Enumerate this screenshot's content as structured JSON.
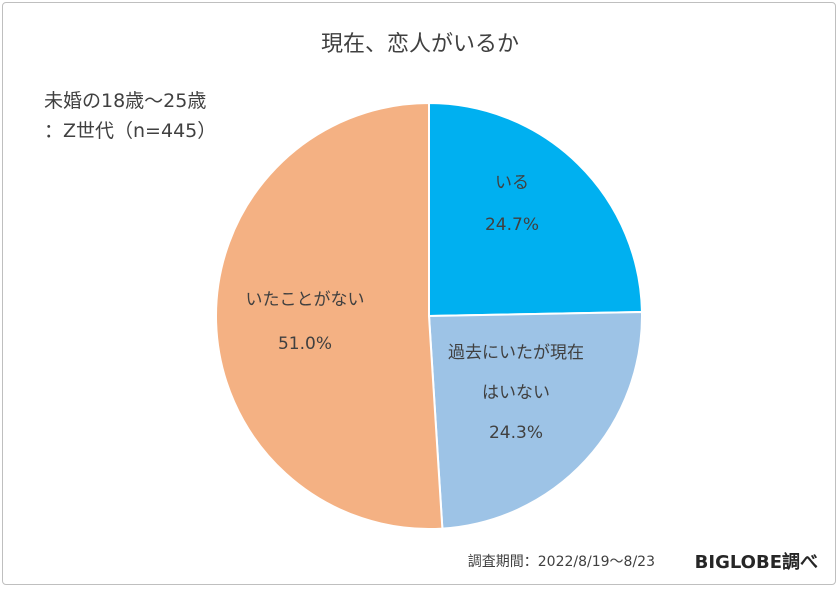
{
  "chart_data": {
    "type": "pie",
    "title": "現在、恋人がいるか",
    "subtitle_lines": [
      "未婚の18歳～25歳",
      "：Z世代（n=445）"
    ],
    "slices": [
      {
        "label_lines": [
          "いる"
        ],
        "value": 24.7,
        "value_label": "24.7%",
        "color": "#00b0f0"
      },
      {
        "label_lines": [
          "過去にいたが現在",
          "はいない"
        ],
        "value": 24.3,
        "value_label": "24.3%",
        "color": "#9dc3e6"
      },
      {
        "label_lines": [
          "いたことがない"
        ],
        "value": 51.0,
        "value_label": "51.0%",
        "color": "#f4b183"
      }
    ],
    "start_angle_deg": 0,
    "direction": "clockwise",
    "slice_border_color": "#ffffff"
  },
  "footer": {
    "period": "調査期間：2022/8/19～8/23",
    "source": "BIGLOBE調べ"
  }
}
